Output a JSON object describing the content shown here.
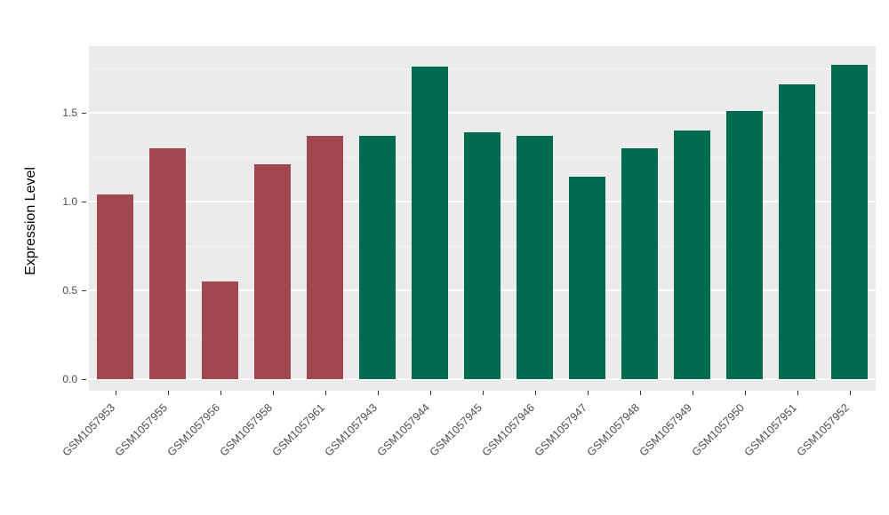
{
  "chart_data": {
    "type": "bar",
    "title": "",
    "xlabel": "",
    "ylabel": "Expression Level",
    "categories": [
      "GSM1057953",
      "GSM1057955",
      "GSM1057956",
      "GSM1057958",
      "GSM1057961",
      "GSM1057943",
      "GSM1057944",
      "GSM1057945",
      "GSM1057946",
      "GSM1057947",
      "GSM1057948",
      "GSM1057949",
      "GSM1057950",
      "GSM1057951",
      "GSM1057952"
    ],
    "values": [
      1.04,
      1.3,
      0.55,
      1.21,
      1.37,
      1.37,
      1.76,
      1.39,
      1.37,
      1.14,
      1.3,
      1.4,
      1.51,
      1.66,
      1.77
    ],
    "bar_groups": [
      "red",
      "red",
      "red",
      "red",
      "red",
      "green",
      "green",
      "green",
      "green",
      "green",
      "green",
      "green",
      "green",
      "green",
      "green"
    ],
    "group_colors": {
      "red": "#A14750",
      "green": "#006B4E"
    },
    "ylim": [
      -0.065,
      1.875
    ],
    "yticks": [
      0.0,
      0.5,
      1.0,
      1.5
    ],
    "ytick_labels": [
      "0.0",
      "0.5",
      "1.0",
      "1.5"
    ],
    "minor_gridlines": [
      0.25,
      0.75,
      1.25,
      1.75
    ],
    "grid": "on",
    "legend": "none",
    "panel_background": "#EBEBEB",
    "grid_color": "#FFFFFF",
    "axis_text_color": "#4d4d4d"
  }
}
